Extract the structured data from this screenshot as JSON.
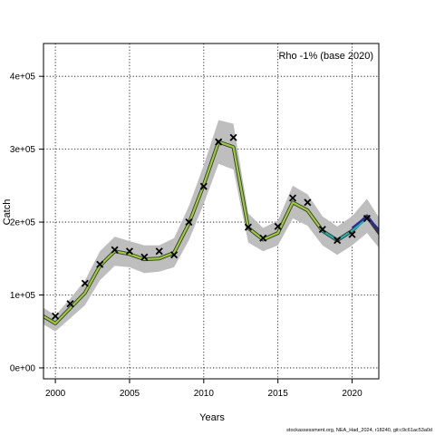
{
  "chart_data": {
    "type": "line",
    "title": "",
    "xlabel": "Years",
    "ylabel": "Catch",
    "xlim": [
      1999.2,
      2021.8
    ],
    "ylim": [
      -15000,
      445000
    ],
    "x_ticks": [
      2000,
      2005,
      2010,
      2015,
      2020
    ],
    "x_tick_labels": [
      "2000",
      "2005",
      "2010",
      "2015",
      "2020"
    ],
    "y_ticks": [
      0,
      100000,
      200000,
      300000,
      400000
    ],
    "y_tick_labels": [
      "0e+00",
      "1e+05",
      "2e+05",
      "3e+05",
      "4e+05"
    ],
    "grid": true,
    "legend": {
      "text": "Rho -1% (base 2020)",
      "position": "top-right"
    },
    "series": [
      {
        "type": "band",
        "color": "#bebebe",
        "x": [
          1999,
          2000,
          2001,
          2002,
          2003,
          2004,
          2005,
          2006,
          2007,
          2008,
          2009,
          2010,
          2011,
          2012,
          2013,
          2014,
          2015,
          2016,
          2017,
          2018,
          2019,
          2020,
          2021,
          2022
        ],
        "lower": [
          62000,
          50000,
          68000,
          86000,
          120000,
          140000,
          138000,
          130000,
          132000,
          138000,
          175000,
          225000,
          280000,
          272000,
          172000,
          160000,
          168000,
          205000,
          195000,
          168000,
          155000,
          168000,
          185000,
          160000
        ],
        "upper": [
          85000,
          72000,
          95000,
          120000,
          160000,
          180000,
          174000,
          168000,
          168000,
          178000,
          222000,
          278000,
          340000,
          335000,
          212000,
          192000,
          202000,
          250000,
          238000,
          208000,
          194000,
          208000,
          232000,
          200000
        ]
      },
      {
        "type": "line",
        "color": "#3a3a3a",
        "x": [
          1999,
          2000,
          2001,
          2002,
          2003,
          2004,
          2005,
          2006,
          2007,
          2008,
          2009,
          2010,
          2011,
          2012,
          2013,
          2014,
          2015,
          2016,
          2017,
          2018,
          2019,
          2020,
          2021,
          2022
        ],
        "y": [
          73000,
          61000,
          82000,
          103000,
          140000,
          160000,
          156000,
          149000,
          150000,
          158000,
          198000,
          251000,
          310000,
          303000,
          192000,
          176000,
          185000,
          227000,
          216000,
          188000,
          175000,
          188000,
          208000,
          180000
        ]
      },
      {
        "type": "line",
        "color": "#9acd32",
        "x": [
          1999,
          2000,
          2001,
          2002,
          2003,
          2004,
          2005,
          2006,
          2007,
          2008,
          2009,
          2010,
          2011,
          2012,
          2013,
          2014,
          2015,
          2016,
          2017,
          2018
        ],
        "y": [
          73000,
          61000,
          82000,
          103000,
          140000,
          160000,
          156000,
          149000,
          150000,
          158000,
          198000,
          251000,
          310000,
          303000,
          192000,
          176000,
          185000,
          227000,
          216000,
          188000
        ]
      },
      {
        "type": "line",
        "color": "#20b2aa",
        "x": [
          2018,
          2019,
          2020,
          2021
        ],
        "y": [
          188000,
          175000,
          188000,
          205000
        ]
      },
      {
        "type": "line",
        "color": "#2b2b9f",
        "x": [
          2020,
          2021,
          2022
        ],
        "y": [
          192000,
          208000,
          185000
        ]
      },
      {
        "type": "scatter",
        "color": "#000000",
        "marker": "x",
        "x": [
          2000,
          2001,
          2002,
          2003,
          2004,
          2005,
          2006,
          2007,
          2008,
          2009,
          2010,
          2011,
          2012,
          2013,
          2014,
          2015,
          2016,
          2017,
          2018,
          2019,
          2020,
          2021
        ],
        "y": [
          71000,
          88000,
          116000,
          142000,
          162000,
          160000,
          152000,
          160000,
          155000,
          200000,
          249000,
          310000,
          316000,
          193000,
          178000,
          194000,
          233000,
          227000,
          190000,
          175000,
          183000,
          205000
        ]
      }
    ]
  },
  "footer": {
    "text": "stockassessment.org, NEA_Had_2024, r18240, git:c9c61ac53a0d"
  }
}
